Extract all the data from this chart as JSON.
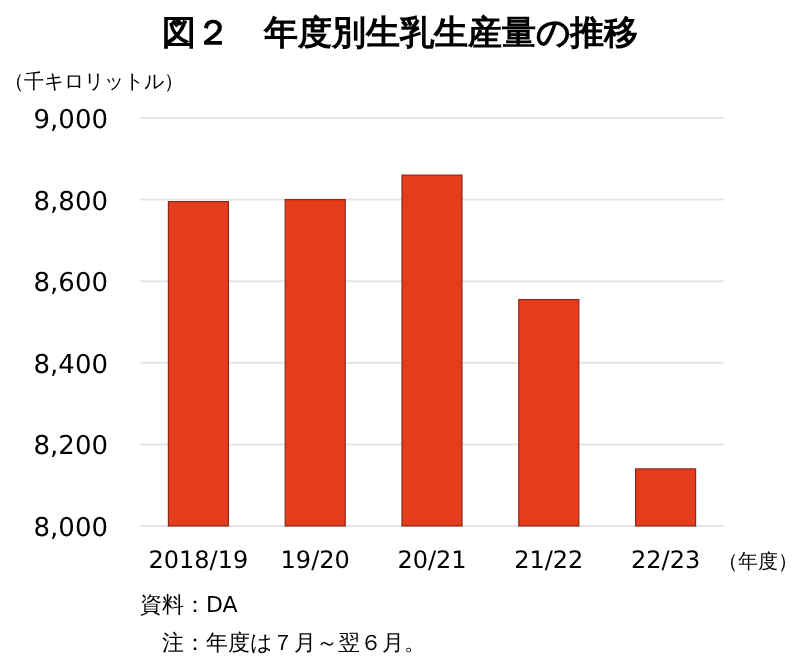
{
  "chart_data": {
    "type": "bar",
    "title": "図２　年度別生乳生産量の推移",
    "ylabel": "（千キロリットル）",
    "xlabel": "（年度）",
    "categories": [
      "2018/19",
      "19/20",
      "20/21",
      "21/22",
      "22/23"
    ],
    "values": [
      8795,
      8800,
      8860,
      8555,
      8140
    ],
    "color": "#e63c1e",
    "ylim": [
      8000,
      9000
    ],
    "yticks": [
      {
        "value": 8000,
        "label": "8,000"
      },
      {
        "value": 8200,
        "label": "8,200"
      },
      {
        "value": 8400,
        "label": "8,400"
      },
      {
        "value": 8600,
        "label": "8,600"
      },
      {
        "value": 8800,
        "label": "8,800"
      },
      {
        "value": 9000,
        "label": "9,000"
      }
    ],
    "grid": "y",
    "annotations": [
      "資料：DA",
      "　注：年度は７月～翌６月。"
    ]
  }
}
